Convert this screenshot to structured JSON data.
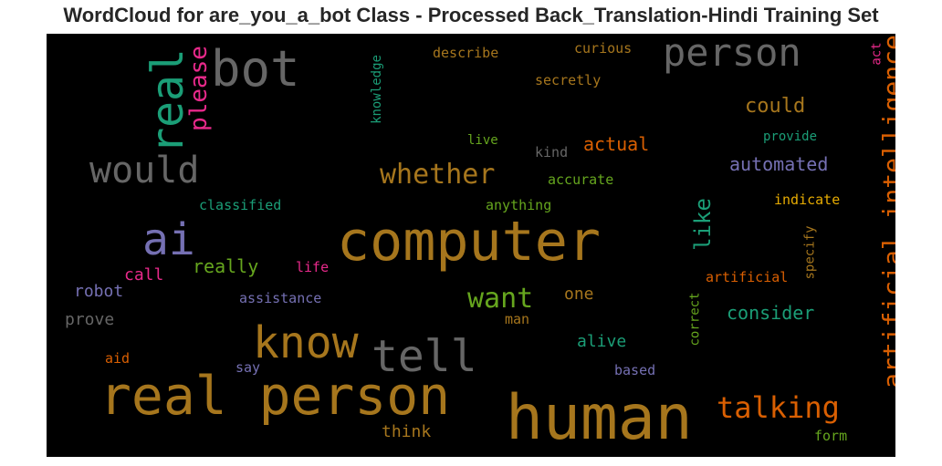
{
  "title": "WordCloud for are_you_a_bot Class - Processed Back_Translation-Hindi Training Set",
  "colors": {
    "bronze": "#a6761d",
    "green": "#1b9e77",
    "orange": "#d95f02",
    "purple": "#7570b3",
    "magenta": "#e7298a",
    "lime": "#66a61e",
    "gold": "#e6ab02",
    "gray": "#666666"
  },
  "words": {
    "computer": "computer",
    "human": "human",
    "real_person": "real person",
    "know": "know",
    "tell": "tell",
    "bot": "bot",
    "person": "person",
    "real": "real",
    "ai": "ai",
    "would": "would",
    "artificial_intelligence": "artificial intelligence",
    "talking": "talking",
    "whether": "whether",
    "please": "please",
    "want": "want",
    "like": "like",
    "could": "could",
    "actual": "actual",
    "automated": "automated",
    "consider": "consider",
    "really": "really",
    "robot": "robot",
    "prove": "prove",
    "call": "call",
    "one": "one",
    "alive": "alive",
    "think": "think",
    "knowledge": "knowledge",
    "describe": "describe",
    "curious": "curious",
    "secretly": "secretly",
    "act": "act",
    "live": "live",
    "kind": "kind",
    "provide": "provide",
    "accurate": "accurate",
    "classified": "classified",
    "anything": "anything",
    "indicate": "indicate",
    "specify": "specify",
    "artificial": "artificial",
    "life": "life",
    "assistance": "assistance",
    "man": "man",
    "correct": "correct",
    "aid": "aid",
    "say": "say",
    "based": "based",
    "form": "form"
  }
}
